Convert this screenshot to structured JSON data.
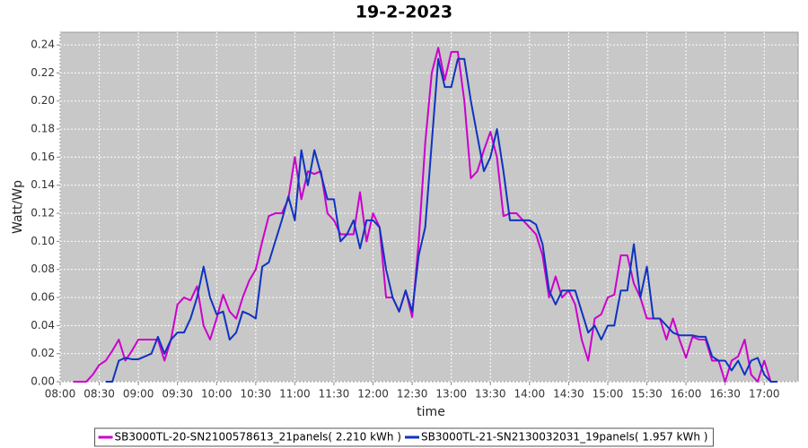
{
  "chart_data": {
    "type": "line",
    "title": "19-2-2023",
    "x_label": "time",
    "y_label": "Watt/Wp",
    "grid": true,
    "legend_position": "bottom",
    "x": [
      "08:10",
      "08:15",
      "08:20",
      "08:25",
      "08:30",
      "08:35",
      "08:40",
      "08:45",
      "08:50",
      "08:55",
      "09:00",
      "09:05",
      "09:10",
      "09:15",
      "09:20",
      "09:25",
      "09:30",
      "09:35",
      "09:40",
      "09:45",
      "09:50",
      "09:55",
      "10:00",
      "10:05",
      "10:10",
      "10:15",
      "10:20",
      "10:25",
      "10:30",
      "10:35",
      "10:40",
      "10:45",
      "10:50",
      "10:55",
      "11:00",
      "11:05",
      "11:10",
      "11:15",
      "11:20",
      "11:25",
      "11:30",
      "11:35",
      "11:40",
      "11:45",
      "11:50",
      "11:55",
      "12:00",
      "12:05",
      "12:10",
      "12:15",
      "12:20",
      "12:25",
      "12:30",
      "12:35",
      "12:40",
      "12:45",
      "12:50",
      "12:55",
      "13:00",
      "13:05",
      "13:10",
      "13:15",
      "13:20",
      "13:25",
      "13:30",
      "13:35",
      "13:40",
      "13:45",
      "13:50",
      "13:55",
      "14:00",
      "14:05",
      "14:10",
      "14:15",
      "14:20",
      "14:25",
      "14:30",
      "14:35",
      "14:40",
      "14:45",
      "14:50",
      "14:55",
      "15:00",
      "15:05",
      "15:10",
      "15:15",
      "15:20",
      "15:25",
      "15:30",
      "15:35",
      "15:40",
      "15:45",
      "15:50",
      "15:55",
      "16:00",
      "16:05",
      "16:10",
      "16:15",
      "16:20",
      "16:25",
      "16:30",
      "16:35",
      "16:40",
      "16:45",
      "16:50",
      "16:55",
      "17:00",
      "17:05",
      "17:10"
    ],
    "xlim": [
      "08:00",
      "17:26"
    ],
    "xticks": [
      "08:00",
      "08:30",
      "09:00",
      "09:30",
      "10:00",
      "10:30",
      "11:00",
      "11:30",
      "12:00",
      "12:30",
      "13:00",
      "13:30",
      "14:00",
      "14:30",
      "15:00",
      "15:30",
      "16:00",
      "16:30",
      "17:00"
    ],
    "ylim": [
      0,
      0.249
    ],
    "yticks": [
      {
        "value": 0,
        "label": "0.00"
      },
      {
        "value": 0.02,
        "label": "0.02"
      },
      {
        "value": 0.04,
        "label": "0.04"
      },
      {
        "value": 0.06,
        "label": "0.06"
      },
      {
        "value": 0.08,
        "label": "0.08"
      },
      {
        "value": 0.1,
        "label": "0.10"
      },
      {
        "value": 0.12,
        "label": "0.12"
      },
      {
        "value": 0.14,
        "label": "0.14"
      },
      {
        "value": 0.16,
        "label": "0.16"
      },
      {
        "value": 0.18,
        "label": "0.18"
      },
      {
        "value": 0.2,
        "label": "0.20"
      },
      {
        "value": 0.22,
        "label": "0.22"
      },
      {
        "value": 0.24,
        "label": "0.24"
      }
    ],
    "series": [
      {
        "name": "SB3000TL-20-SN2100578613_21panels( 2.210 kWh )",
        "color": "#cc00cc",
        "values": [
          0,
          0,
          0,
          0.005,
          0.012,
          0.015,
          0.022,
          0.03,
          0.015,
          0.022,
          0.03,
          0.03,
          0.03,
          0.03,
          0.015,
          0.03,
          0.055,
          0.06,
          0.058,
          0.068,
          0.04,
          0.03,
          0.045,
          0.062,
          0.05,
          0.045,
          0.06,
          0.072,
          0.08,
          0.1,
          0.118,
          0.12,
          0.12,
          0.13,
          0.16,
          0.13,
          0.15,
          0.148,
          0.15,
          0.12,
          0.115,
          0.105,
          0.105,
          0.105,
          0.135,
          0.1,
          0.12,
          0.11,
          0.06,
          0.06,
          0.05,
          0.065,
          0.046,
          0.1,
          0.17,
          0.22,
          0.238,
          0.215,
          0.235,
          0.235,
          0.2,
          0.145,
          0.15,
          0.165,
          0.178,
          0.16,
          0.118,
          0.12,
          0.12,
          0.115,
          0.11,
          0.105,
          0.09,
          0.06,
          0.075,
          0.06,
          0.065,
          0.055,
          0.03,
          0.015,
          0.045,
          0.048,
          0.06,
          0.062,
          0.09,
          0.09,
          0.07,
          0.06,
          0.045,
          0.045,
          0.045,
          0.03,
          0.045,
          0.03,
          0.017,
          0.032,
          0.03,
          0.03,
          0.015,
          0.015,
          0,
          0.015,
          0.018,
          0.03,
          0.005,
          0,
          0.015,
          0,
          0
        ]
      },
      {
        "name": "SB3000TL-21-SN2130032031_19panels( 1.957 kWh )",
        "color": "#1033c0",
        "values": [
          null,
          null,
          null,
          null,
          null,
          0,
          0,
          0.015,
          0.017,
          0.016,
          0.016,
          0.018,
          0.02,
          0.032,
          0.02,
          0.03,
          0.035,
          0.035,
          0.045,
          0.06,
          0.082,
          0.06,
          0.048,
          0.05,
          0.03,
          0.035,
          0.05,
          0.048,
          0.045,
          0.082,
          0.085,
          0.1,
          0.115,
          0.132,
          0.115,
          0.165,
          0.14,
          0.165,
          0.148,
          0.13,
          0.13,
          0.1,
          0.105,
          0.115,
          0.095,
          0.115,
          0.115,
          0.11,
          0.08,
          0.06,
          0.05,
          0.065,
          0.05,
          0.09,
          0.11,
          0.17,
          0.23,
          0.21,
          0.21,
          0.23,
          0.23,
          0.2,
          0.175,
          0.15,
          0.16,
          0.18,
          0.15,
          0.115,
          0.115,
          0.115,
          0.115,
          0.112,
          0.098,
          0.065,
          0.055,
          0.065,
          0.065,
          0.065,
          0.05,
          0.035,
          0.04,
          0.03,
          0.04,
          0.04,
          0.065,
          0.065,
          0.098,
          0.06,
          0.082,
          0.045,
          0.045,
          0.04,
          0.035,
          0.033,
          0.033,
          0.033,
          0.032,
          0.032,
          0.018,
          0.015,
          0.015,
          0.008,
          0.015,
          0.005,
          0.015,
          0.017,
          0.005,
          0,
          0
        ]
      }
    ]
  }
}
